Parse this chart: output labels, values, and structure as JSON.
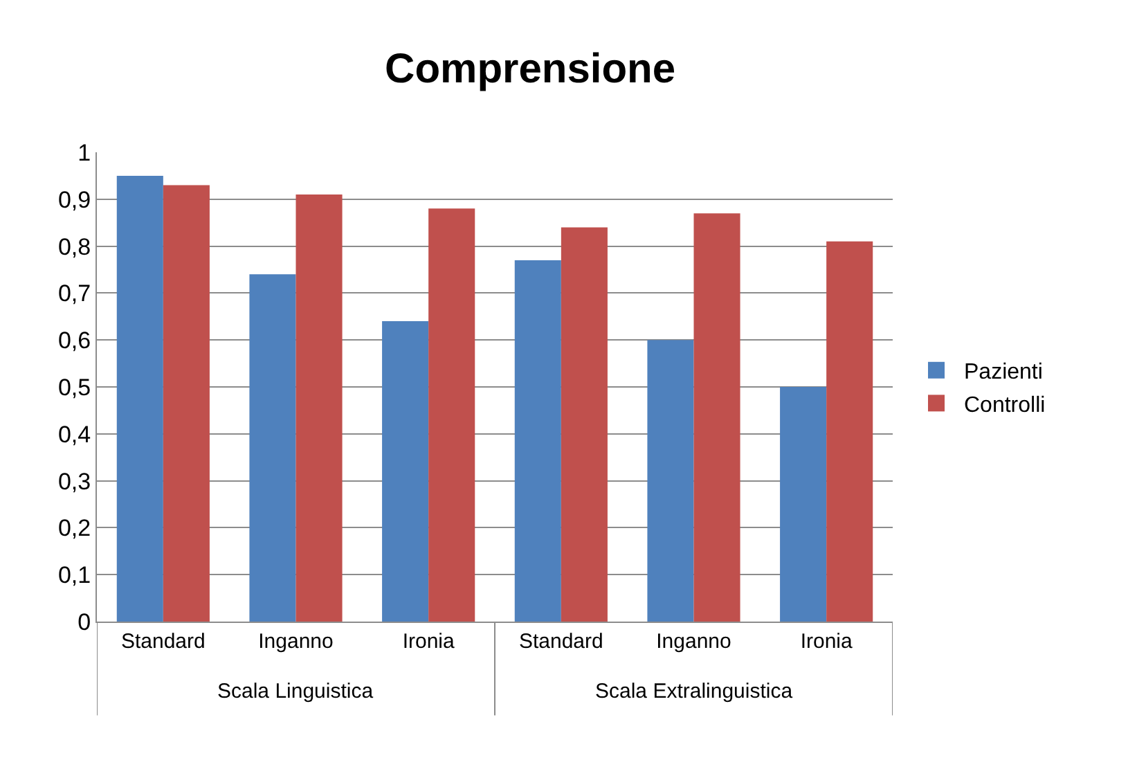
{
  "chart_data": {
    "type": "bar",
    "title": "Comprensione",
    "categories": [
      "Standard",
      "Inganno",
      "Ironia",
      "Standard",
      "Inganno",
      "Ironia"
    ],
    "series": [
      {
        "name": "Pazienti",
        "color": "#4f81bd",
        "values": [
          0.95,
          0.74,
          0.64,
          0.77,
          0.6,
          0.5
        ]
      },
      {
        "name": "Controlli",
        "color": "#c0504d",
        "values": [
          0.93,
          0.91,
          0.88,
          0.84,
          0.87,
          0.81
        ]
      }
    ],
    "annotations": [
      "Scala Linguistica",
      "Scala Extralinguistica"
    ],
    "ylim": [
      0,
      1
    ],
    "yticks": [
      {
        "value": 0,
        "label": "0"
      },
      {
        "value": 0.1,
        "label": "0,1"
      },
      {
        "value": 0.2,
        "label": "0,2"
      },
      {
        "value": 0.3,
        "label": "0,3"
      },
      {
        "value": 0.4,
        "label": "0,4"
      },
      {
        "value": 0.5,
        "label": "0,5"
      },
      {
        "value": 0.6,
        "label": "0,6"
      },
      {
        "value": 0.7,
        "label": "0,7"
      },
      {
        "value": 0.8,
        "label": "0,8"
      },
      {
        "value": 0.9,
        "label": "0,9"
      },
      {
        "value": 1,
        "label": "1"
      }
    ],
    "grid": "y",
    "legend": "right"
  }
}
